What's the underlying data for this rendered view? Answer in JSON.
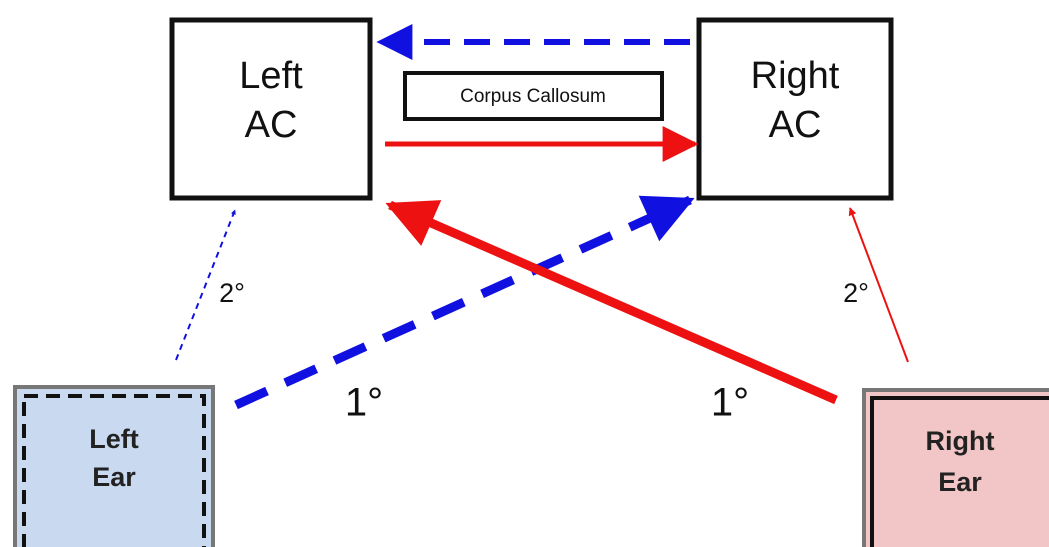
{
  "nodes": [
    {
      "lines": [
        "Left",
        "AC"
      ]
    },
    {
      "lines": [
        "Right",
        "AC"
      ]
    },
    {
      "lines": [
        "Corpus Callosum"
      ]
    },
    {
      "lines": [
        "Left",
        "Ear"
      ]
    },
    {
      "lines": [
        "Right",
        "Ear"
      ]
    }
  ],
  "edge_labels": [
    "2°",
    "1°",
    "1°",
    "2°"
  ]
}
